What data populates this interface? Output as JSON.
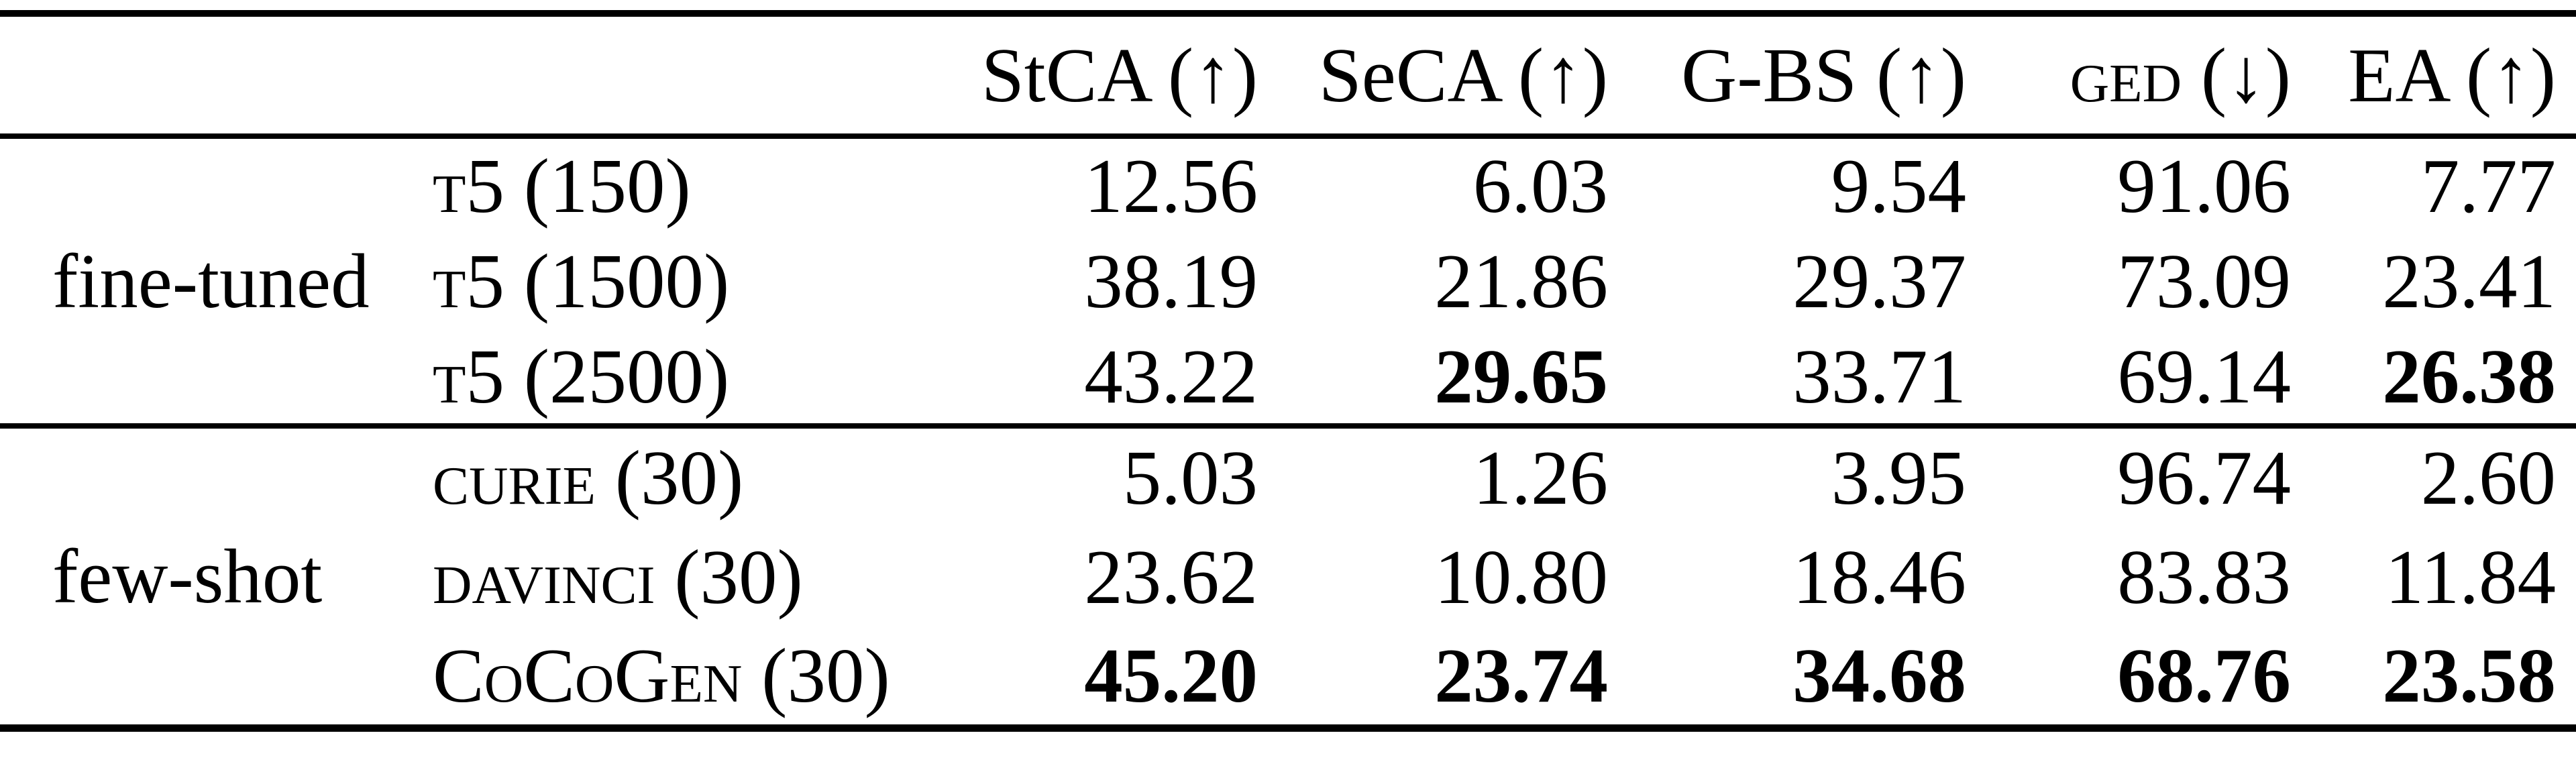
{
  "table": {
    "headers": [
      "",
      "",
      "StCA (↑)",
      "SeCA (↑)",
      "G-BS (↑)",
      "GED (↓)",
      "EA (↑)"
    ],
    "metric_directions": {
      "StCA": "higher-better",
      "SeCA": "higher-better",
      "G-BS": "higher-better",
      "GED": "lower-better",
      "EA": "higher-better"
    },
    "groups": [
      {
        "label": "fine-tuned",
        "rows": [
          {
            "model": "T5 (150)",
            "values": [
              "12.56",
              "6.03",
              "9.54",
              "91.06",
              "7.77"
            ],
            "bold": [
              false,
              false,
              false,
              false,
              false
            ]
          },
          {
            "model": "T5 (1500)",
            "values": [
              "38.19",
              "21.86",
              "29.37",
              "73.09",
              "23.41"
            ],
            "bold": [
              false,
              false,
              false,
              false,
              false
            ]
          },
          {
            "model": "T5 (2500)",
            "values": [
              "43.22",
              "29.65",
              "33.71",
              "69.14",
              "26.38"
            ],
            "bold": [
              false,
              true,
              false,
              false,
              true
            ]
          }
        ]
      },
      {
        "label": "few-shot",
        "rows": [
          {
            "model": "CURIE (30)",
            "values": [
              "5.03",
              "1.26",
              "3.95",
              "96.74",
              "2.60"
            ],
            "bold": [
              false,
              false,
              false,
              false,
              false
            ]
          },
          {
            "model": "DAVINCI (30)",
            "values": [
              "23.62",
              "10.80",
              "18.46",
              "83.83",
              "11.84"
            ],
            "bold": [
              false,
              false,
              false,
              false,
              false
            ]
          },
          {
            "model": "CoCoGen (30)",
            "values": [
              "45.20",
              "23.74",
              "34.68",
              "68.76",
              "23.58"
            ],
            "bold": [
              true,
              true,
              true,
              true,
              true
            ]
          }
        ]
      }
    ],
    "colors": {
      "text": "#000000",
      "background": "#ffffff",
      "rule": "#000000"
    }
  }
}
